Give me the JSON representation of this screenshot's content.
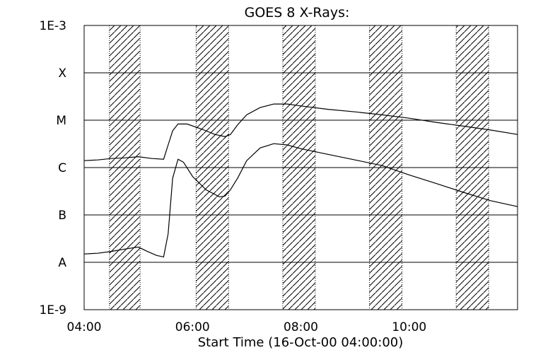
{
  "chart_data": {
    "type": "line",
    "title": "GOES 8 X-Rays:",
    "xlabel": "Start Time (16-Oct-00 04:00:00)",
    "ylabel": "",
    "x_unit": "hours",
    "xlim": [
      "04:00",
      "12:00"
    ],
    "x_ticks": [
      "04:00",
      "06:00",
      "08:00",
      "10:00"
    ],
    "yscale": "log",
    "ylim": [
      1e-09,
      0.001
    ],
    "y_tick_labels": [
      {
        "label": "1E-3",
        "value": 0.001
      },
      {
        "label": "X",
        "value": 0.0001
      },
      {
        "label": "M",
        "value": 1e-05
      },
      {
        "label": "C",
        "value": 1e-06
      },
      {
        "label": "B",
        "value": 1e-07
      },
      {
        "label": "A",
        "value": 1e-08
      },
      {
        "label": "1E-9",
        "value": 1e-09
      }
    ],
    "grid": "horizontal lines at flare classes",
    "shaded_intervals": [
      [
        "04:28",
        "05:02"
      ],
      [
        "06:04",
        "06:40"
      ],
      [
        "07:40",
        "08:16"
      ],
      [
        "09:16",
        "09:52"
      ],
      [
        "10:52",
        "11:28"
      ]
    ],
    "series": [
      {
        "x": [
          "04:00",
          "04:15",
          "04:30",
          "04:45",
          "05:00",
          "05:15",
          "05:28",
          "05:33",
          "05:38",
          "05:44",
          "05:54",
          "06:10",
          "06:25",
          "06:36",
          "06:42",
          "06:50",
          "07:00",
          "07:15",
          "07:30",
          "07:45",
          "08:00",
          "08:30",
          "09:00",
          "09:30",
          "10:00",
          "10:30",
          "11:00",
          "11:30",
          "12:00"
        ],
        "values": [
          1.4e-06,
          1.45e-06,
          1.55e-06,
          1.6e-06,
          1.7e-06,
          1.55e-06,
          1.5e-06,
          3e-06,
          6e-06,
          8.3e-06,
          8.3e-06,
          6.5e-06,
          5e-06,
          4.5e-06,
          5e-06,
          8e-06,
          1.3e-05,
          1.85e-05,
          2.2e-05,
          2.2e-05,
          2e-05,
          1.7e-05,
          1.5e-05,
          1.3e-05,
          1.1e-05,
          9e-06,
          7.5e-06,
          6.2e-06,
          5e-06
        ]
      },
      {
        "x": [
          "04:00",
          "04:15",
          "04:30",
          "04:45",
          "05:00",
          "05:10",
          "05:20",
          "05:28",
          "05:33",
          "05:38",
          "05:44",
          "05:50",
          "06:00",
          "06:15",
          "06:30",
          "06:36",
          "06:42",
          "06:50",
          "07:00",
          "07:15",
          "07:30",
          "07:45",
          "08:00",
          "08:30",
          "09:00",
          "09:30",
          "10:00",
          "10:30",
          "11:00",
          "11:30",
          "12:00"
        ],
        "values": [
          1.5e-08,
          1.55e-08,
          1.7e-08,
          1.9e-08,
          2.1e-08,
          1.7e-08,
          1.4e-08,
          1.3e-08,
          4e-08,
          6e-07,
          1.5e-06,
          1.3e-06,
          6.5e-07,
          3.4e-07,
          2.4e-07,
          2.5e-07,
          3.4e-07,
          6e-07,
          1.4e-06,
          2.6e-06,
          3.2e-06,
          3e-06,
          2.5e-06,
          1.9e-06,
          1.45e-06,
          1.1e-06,
          7e-07,
          4.6e-07,
          3e-07,
          2e-07,
          1.5e-07
        ]
      }
    ]
  }
}
